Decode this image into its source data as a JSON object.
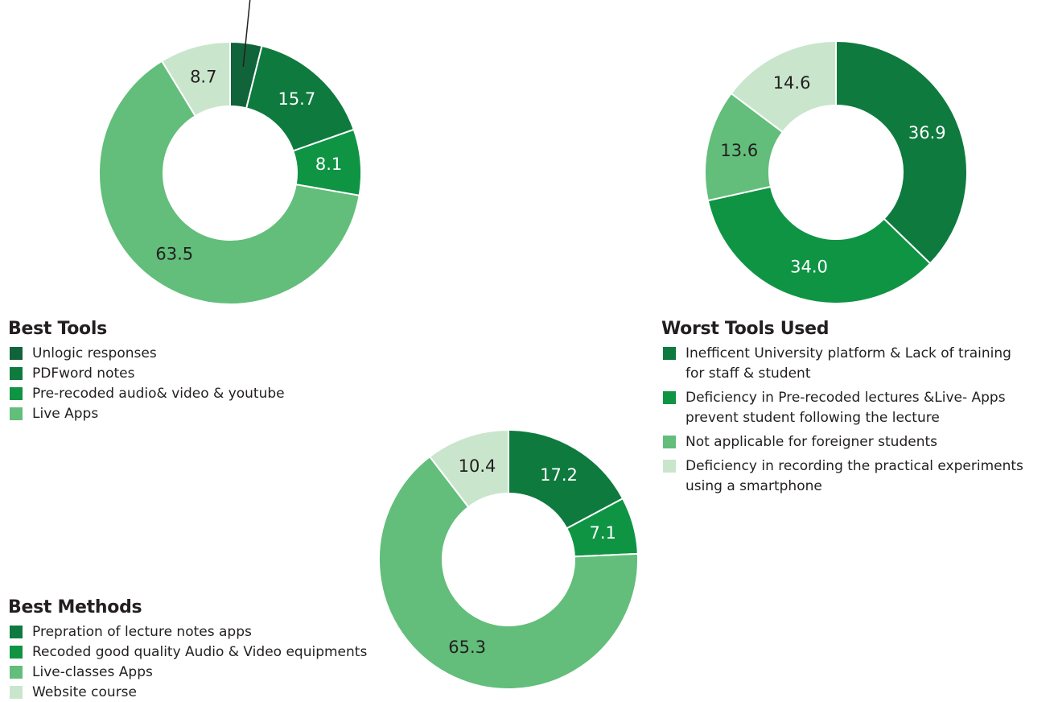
{
  "chart_data": [
    {
      "type": "donut",
      "title": "Best Tools",
      "categories": [
        "Unlogic responses",
        "PDFword notes",
        "Pre-recoded audio& video & youtube",
        "Live Apps",
        null
      ],
      "values": [
        3.9,
        15.7,
        8.1,
        63.5,
        8.7
      ],
      "colors": [
        "#11643a",
        "#0e7a3e",
        "#0f9444",
        "#62be7a",
        "#c9e6cd"
      ]
    },
    {
      "type": "donut",
      "title": "Worst Tools Used",
      "categories": [
        "Inefficent University platform & Lack of training\nfor staff & student",
        "Deficiency in Pre-recoded lectures &Live- Apps\nprevent  student following the lecture",
        "Not applicable for foreigner students",
        "Deficiency in recording the practical experiments\nusing a smartphone"
      ],
      "values": [
        36.9,
        34.0,
        13.6,
        14.6
      ],
      "value_labels": [
        "36.9",
        "34.0",
        "13.6",
        "14.6"
      ],
      "colors": [
        "#0e7a3e",
        "#0f9444",
        "#62be7a",
        "#c9e6cd"
      ]
    },
    {
      "type": "donut",
      "title": "Best Methods",
      "categories": [
        "Prepration of lecture notes apps",
        "Recoded good quality Audio & Video  equipments",
        "Live-classes Apps",
        "Website course"
      ],
      "values": [
        17.2,
        7.1,
        65.3,
        10.4
      ],
      "colors": [
        "#0e7a3e",
        "#0f9444",
        "#62be7a",
        "#c9e6cd"
      ]
    }
  ]
}
